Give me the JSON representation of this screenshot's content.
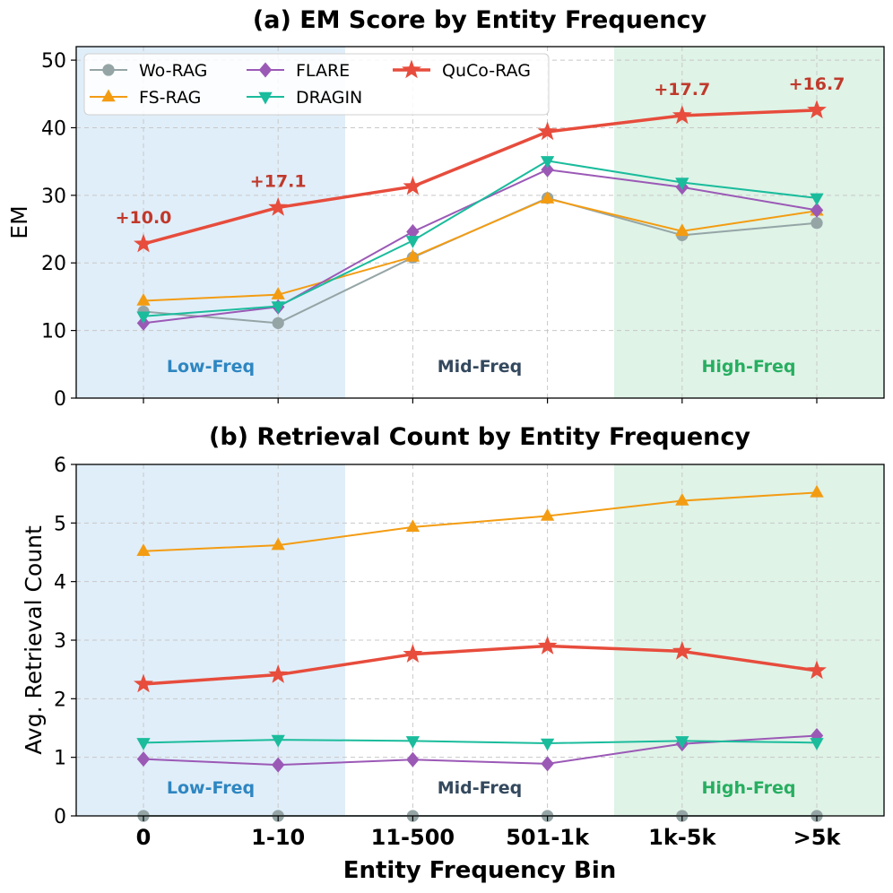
{
  "chart_data": [
    {
      "type": "line",
      "title": "(a) EM Score by Entity Frequency",
      "xlabel": "",
      "ylabel": "EM",
      "categories": [
        "0",
        "1-10",
        "11-500",
        "501-1k",
        "1k-5k",
        ">5k"
      ],
      "ylim": [
        0,
        52
      ],
      "yticks": [
        0,
        10,
        20,
        30,
        40,
        50
      ],
      "grid": true,
      "legend_position": "top-left",
      "series": [
        {
          "name": "Wo-RAG",
          "color": "#95a5a6",
          "marker": "circle",
          "values": [
            12.8,
            11.1,
            20.8,
            29.6,
            24.1,
            25.9
          ]
        },
        {
          "name": "FS-RAG",
          "color": "#f39c12",
          "marker": "triangle-up",
          "values": [
            14.4,
            15.3,
            20.9,
            29.5,
            24.7,
            27.7
          ]
        },
        {
          "name": "FLARE",
          "color": "#9b59b6",
          "marker": "diamond",
          "values": [
            11.1,
            13.5,
            24.6,
            33.8,
            31.2,
            27.8
          ]
        },
        {
          "name": "DRAGIN",
          "color": "#1abc9c",
          "marker": "triangle-down",
          "values": [
            12.1,
            13.6,
            23.3,
            35.1,
            31.9,
            29.6
          ]
        },
        {
          "name": "QuCo-RAG",
          "color": "#e74c3c",
          "marker": "star",
          "values": [
            22.8,
            28.2,
            31.3,
            39.4,
            41.8,
            42.6
          ]
        }
      ],
      "annotations": [
        {
          "category": "0",
          "text": "+10.0"
        },
        {
          "category": "1-10",
          "text": "+17.1"
        },
        {
          "category": "1k-5k",
          "text": "+17.7"
        },
        {
          "category": ">5k",
          "text": "+16.7"
        }
      ],
      "regions": [
        {
          "label": "Low-Freq",
          "color": "#2e86c1",
          "fill": "#d6e8f7"
        },
        {
          "label": "Mid-Freq",
          "color": "#34495e",
          "fill": "none"
        },
        {
          "label": "High-Freq",
          "color": "#27ae60",
          "fill": "#d4efdf"
        }
      ]
    },
    {
      "type": "line",
      "title": "(b) Retrieval Count by Entity Frequency",
      "xlabel": "Entity Frequency Bin",
      "ylabel": "Avg. Retrieval Count",
      "categories": [
        "0",
        "1-10",
        "11-500",
        "501-1k",
        "1k-5k",
        ">5k"
      ],
      "ylim": [
        0,
        6
      ],
      "yticks": [
        0,
        1,
        2,
        3,
        4,
        5,
        6
      ],
      "grid": true,
      "series": [
        {
          "name": "Wo-RAG",
          "color": "#95a5a6",
          "marker": "circle",
          "values": [
            0,
            0,
            0,
            0,
            0,
            0
          ]
        },
        {
          "name": "FS-RAG",
          "color": "#f39c12",
          "marker": "triangle-up",
          "values": [
            4.52,
            4.62,
            4.93,
            5.12,
            5.38,
            5.52
          ]
        },
        {
          "name": "FLARE",
          "color": "#9b59b6",
          "marker": "diamond",
          "values": [
            0.97,
            0.87,
            0.96,
            0.89,
            1.23,
            1.37
          ]
        },
        {
          "name": "DRAGIN",
          "color": "#1abc9c",
          "marker": "triangle-down",
          "values": [
            1.25,
            1.3,
            1.28,
            1.24,
            1.28,
            1.25
          ]
        },
        {
          "name": "QuCo-RAG",
          "color": "#e74c3c",
          "marker": "star",
          "values": [
            2.25,
            2.41,
            2.76,
            2.9,
            2.81,
            2.48
          ]
        }
      ],
      "regions": [
        {
          "label": "Low-Freq",
          "color": "#2e86c1",
          "fill": "#d6e8f7"
        },
        {
          "label": "Mid-Freq",
          "color": "#34495e",
          "fill": "none"
        },
        {
          "label": "High-Freq",
          "color": "#27ae60",
          "fill": "#d4efdf"
        }
      ]
    }
  ]
}
